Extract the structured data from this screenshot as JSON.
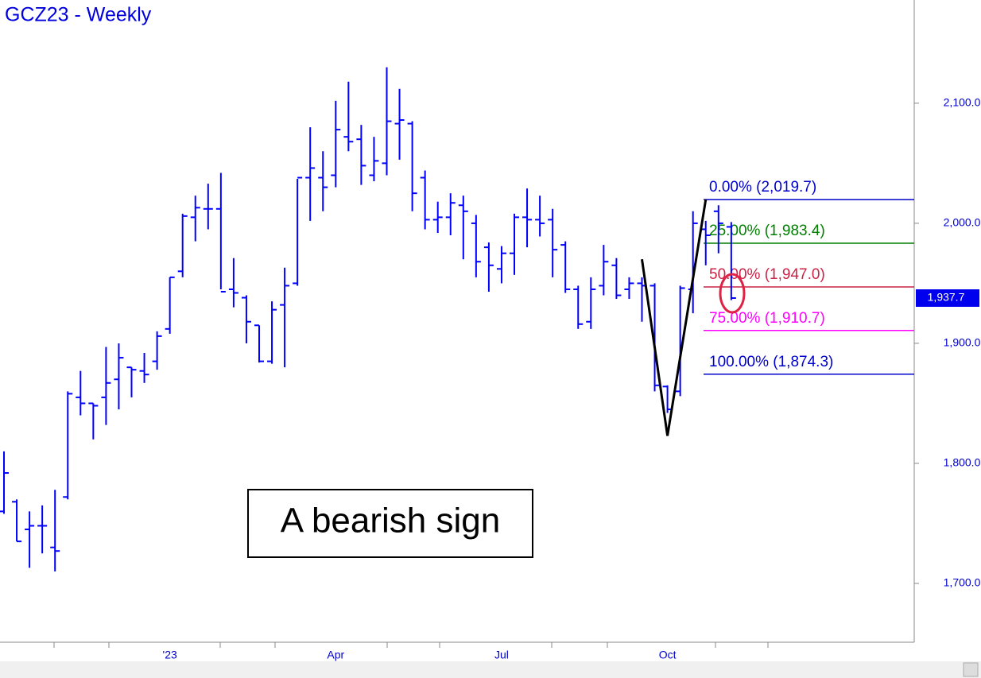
{
  "chart_data": {
    "type": "ohlc",
    "title": "GCZ23 - Weekly",
    "categories": [
      null,
      null,
      null,
      null,
      null,
      null,
      null,
      null,
      null,
      null,
      null,
      null,
      null,
      "'23",
      null,
      null,
      null,
      null,
      null,
      null,
      null,
      null,
      null,
      null,
      null,
      null,
      "Apr",
      null,
      null,
      null,
      null,
      null,
      null,
      null,
      null,
      null,
      null,
      null,
      null,
      "Jul",
      null,
      null,
      null,
      null,
      null,
      null,
      null,
      null,
      null,
      null,
      null,
      null,
      "Oct",
      null,
      null,
      null,
      null,
      null
    ],
    "color": "#0000ff",
    "open": [
      1760,
      1768,
      1745,
      1748,
      1730,
      1772,
      1855,
      1850,
      1855,
      1870,
      1880,
      1877,
      1885,
      1912,
      1960,
      2005,
      2012,
      2012,
      1945,
      1938,
      1915,
      1885,
      1932,
      1950,
      2038,
      2038,
      2040,
      2072,
      2070,
      2040,
      2050,
      2083,
      2083,
      2038,
      2003,
      2005,
      2015,
      2000,
      1980,
      1962,
      1975,
      2005,
      2003,
      2003,
      1982,
      1945,
      1918,
      1948,
      1965,
      1945,
      1950,
      1948,
      1864,
      1860,
      1945,
      1995,
      2010,
      1997
    ],
    "high": [
      1810,
      1770,
      1760,
      1765,
      1778,
      1860,
      1877,
      1850,
      1897,
      1900,
      1880,
      1892,
      1910,
      1955,
      2008,
      2023,
      2033,
      2042,
      1971,
      1940,
      1915,
      1935,
      1963,
      2037,
      2080,
      2060,
      2102,
      2118,
      2082,
      2072,
      2130,
      2112,
      2085,
      2044,
      2018,
      2025,
      2023,
      2007,
      1984,
      1981,
      2008,
      2029,
      2023,
      2012,
      1985,
      1948,
      1955,
      1982,
      1971,
      1955,
      1955,
      1950,
      1865,
      1948,
      2010,
      2002,
      2015,
      2001
    ],
    "low": [
      1758,
      1735,
      1713,
      1725,
      1710,
      1770,
      1840,
      1820,
      1832,
      1845,
      1855,
      1867,
      1878,
      1908,
      1955,
      1985,
      1995,
      1945,
      1930,
      1900,
      1884,
      1883,
      1880,
      1948,
      2002,
      2010,
      2030,
      2060,
      2032,
      2035,
      2040,
      2053,
      2010,
      1995,
      1992,
      1990,
      1970,
      1955,
      1943,
      1950,
      1957,
      1980,
      1989,
      1955,
      1942,
      1912,
      1912,
      1940,
      1937,
      1937,
      1918,
      1860,
      1842,
      1856,
      1925,
      1965,
      1975,
      1936
    ],
    "close": [
      1792,
      1735,
      1748,
      1748,
      1727,
      1858,
      1850,
      1848,
      1867,
      1888,
      1878,
      1874,
      1906,
      1955,
      2006,
      2013,
      2012,
      1943,
      1942,
      1918,
      1885,
      1928,
      1948,
      2038,
      2046,
      2030,
      2078,
      2068,
      2048,
      2052,
      2085,
      2086,
      2025,
      2003,
      2005,
      2017,
      2010,
      1968,
      1965,
      1975,
      2005,
      2003,
      2000,
      1978,
      1945,
      1916,
      1945,
      1968,
      1940,
      1950,
      1948,
      1865,
      1845,
      1946,
      2000,
      1990,
      2000,
      1937.7
    ],
    "ylim": [
      1651,
      2186
    ],
    "yticks": [
      {
        "value": 1700,
        "label": "1,700.0"
      },
      {
        "value": 1800,
        "label": "1,800.0"
      },
      {
        "value": 1900,
        "label": "1,900.0"
      },
      {
        "value": 2000,
        "label": "2,000.0"
      },
      {
        "value": 2100,
        "label": "2,100.0"
      }
    ],
    "zigzag": {
      "x": [
        50,
        52,
        55
      ],
      "values": [
        1970,
        1823,
        2019.7
      ],
      "color": "#000000"
    },
    "fib_levels": [
      {
        "label": "0.00% (2,019.7)",
        "value": 2019.7,
        "color": "#0000cc"
      },
      {
        "label": "25.00% (1,983.4)",
        "value": 1983.4,
        "color": "#008000"
      },
      {
        "label": "50.00% (1,947.0)",
        "value": 1947.0,
        "color": "#cc2244"
      },
      {
        "label": "75.00% (1,910.7)",
        "value": 1910.7,
        "color": "#ff00ff"
      },
      {
        "label": "100.00% (1,874.3)",
        "value": 1874.3,
        "color": "#0000cc"
      }
    ],
    "last_price": {
      "value": 1937.7,
      "label": "1,937.7"
    },
    "annotation": "A bearish sign"
  }
}
